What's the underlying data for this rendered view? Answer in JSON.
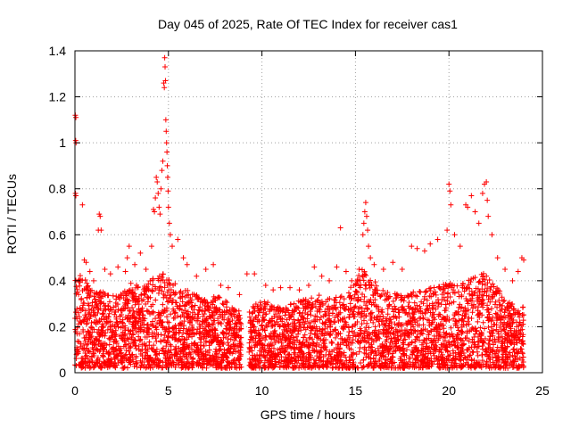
{
  "chart_data": {
    "type": "scatter",
    "title": "Day 045 of 2025, Rate Of TEC Index for receiver cas1",
    "xlabel": "GPS time / hours",
    "ylabel": "ROTI / TECUs",
    "xlim": [
      0,
      25
    ],
    "ylim": [
      0,
      1.4
    ],
    "xticks": [
      0,
      5,
      10,
      15,
      20,
      25
    ],
    "xtick_labels": [
      "0",
      "5",
      "10",
      "15",
      "20",
      "25"
    ],
    "yticks": [
      0,
      0.2,
      0.4,
      0.6,
      0.8,
      1.0,
      1.2,
      1.4
    ],
    "ytick_labels": [
      "0",
      "0.2",
      "0.4",
      "0.6",
      "0.8",
      "1",
      "1.2",
      "1.4"
    ],
    "grid": true,
    "marker": "+",
    "color": "#ff0000",
    "points": [
      [
        0.02,
        1.12
      ],
      [
        0.05,
        1.11
      ],
      [
        0.04,
        1.01
      ],
      [
        0.06,
        1.0
      ],
      [
        0.03,
        0.78
      ],
      [
        0.05,
        0.77
      ],
      [
        0.4,
        0.73
      ],
      [
        1.3,
        0.69
      ],
      [
        1.35,
        0.68
      ],
      [
        1.25,
        0.62
      ],
      [
        1.4,
        0.62
      ],
      [
        0.5,
        0.49
      ],
      [
        0.6,
        0.48
      ],
      [
        0.8,
        0.44
      ],
      [
        1.0,
        0.4
      ],
      [
        1.6,
        0.45
      ],
      [
        1.9,
        0.43
      ],
      [
        2.3,
        0.46
      ],
      [
        2.7,
        0.44
      ],
      [
        2.8,
        0.5
      ],
      [
        2.9,
        0.55
      ],
      [
        3.2,
        0.47
      ],
      [
        3.5,
        0.52
      ],
      [
        3.8,
        0.45
      ],
      [
        4.1,
        0.55
      ],
      [
        4.2,
        0.71
      ],
      [
        4.25,
        0.7
      ],
      [
        4.3,
        0.76
      ],
      [
        4.35,
        0.85
      ],
      [
        4.4,
        0.83
      ],
      [
        4.45,
        0.78
      ],
      [
        4.5,
        0.72
      ],
      [
        4.55,
        0.69
      ],
      [
        4.6,
        0.8
      ],
      [
        4.65,
        0.88
      ],
      [
        4.7,
        0.92
      ],
      [
        4.75,
        1.26
      ],
      [
        4.78,
        1.24
      ],
      [
        4.8,
        1.37
      ],
      [
        4.82,
        1.33
      ],
      [
        4.84,
        1.27
      ],
      [
        4.86,
        1.1
      ],
      [
        4.88,
        1.05
      ],
      [
        4.9,
        1.0
      ],
      [
        4.92,
        0.96
      ],
      [
        4.94,
        0.9
      ],
      [
        4.96,
        0.85
      ],
      [
        4.98,
        0.79
      ],
      [
        5.0,
        0.72
      ],
      [
        5.05,
        0.65
      ],
      [
        5.1,
        0.6
      ],
      [
        5.2,
        0.55
      ],
      [
        5.5,
        0.58
      ],
      [
        5.8,
        0.5
      ],
      [
        6.0,
        0.47
      ],
      [
        6.5,
        0.42
      ],
      [
        7.0,
        0.45
      ],
      [
        7.4,
        0.47
      ],
      [
        7.8,
        0.38
      ],
      [
        8.2,
        0.37
      ],
      [
        8.8,
        0.34
      ],
      [
        9.2,
        0.43
      ],
      [
        9.6,
        0.43
      ],
      [
        10.2,
        0.38
      ],
      [
        10.6,
        0.36
      ],
      [
        11.0,
        0.37
      ],
      [
        11.5,
        0.37
      ],
      [
        12.0,
        0.36
      ],
      [
        12.5,
        0.38
      ],
      [
        12.8,
        0.46
      ],
      [
        13.2,
        0.42
      ],
      [
        13.6,
        0.4
      ],
      [
        14.0,
        0.46
      ],
      [
        14.2,
        0.63
      ],
      [
        14.5,
        0.44
      ],
      [
        14.8,
        0.4
      ],
      [
        15.2,
        0.45
      ],
      [
        15.4,
        0.6
      ],
      [
        15.45,
        0.65
      ],
      [
        15.5,
        0.7
      ],
      [
        15.55,
        0.74
      ],
      [
        15.6,
        0.68
      ],
      [
        15.65,
        0.62
      ],
      [
        15.7,
        0.55
      ],
      [
        15.8,
        0.5
      ],
      [
        16.0,
        0.47
      ],
      [
        16.5,
        0.45
      ],
      [
        17.0,
        0.48
      ],
      [
        17.5,
        0.45
      ],
      [
        18.0,
        0.55
      ],
      [
        18.3,
        0.54
      ],
      [
        18.7,
        0.53
      ],
      [
        19.0,
        0.56
      ],
      [
        19.4,
        0.58
      ],
      [
        19.9,
        0.62
      ],
      [
        20.0,
        0.82
      ],
      [
        20.05,
        0.79
      ],
      [
        20.1,
        0.73
      ],
      [
        20.3,
        0.6
      ],
      [
        20.6,
        0.55
      ],
      [
        20.9,
        0.73
      ],
      [
        21.0,
        0.72
      ],
      [
        21.2,
        0.77
      ],
      [
        21.4,
        0.7
      ],
      [
        21.6,
        0.65
      ],
      [
        21.8,
        0.78
      ],
      [
        21.9,
        0.82
      ],
      [
        22.0,
        0.83
      ],
      [
        22.05,
        0.75
      ],
      [
        22.1,
        0.68
      ],
      [
        22.3,
        0.6
      ],
      [
        22.6,
        0.5
      ],
      [
        23.0,
        0.45
      ],
      [
        23.4,
        0.4
      ],
      [
        23.7,
        0.44
      ],
      [
        23.9,
        0.5
      ],
      [
        24.0,
        0.49
      ]
    ],
    "density_band": [
      [
        0,
        0.42
      ],
      [
        0.5,
        0.4
      ],
      [
        1.0,
        0.33
      ],
      [
        1.5,
        0.34
      ],
      [
        2.0,
        0.32
      ],
      [
        2.5,
        0.33
      ],
      [
        3.0,
        0.38
      ],
      [
        3.5,
        0.35
      ],
      [
        4.0,
        0.38
      ],
      [
        4.5,
        0.42
      ],
      [
        5.0,
        0.4
      ],
      [
        5.5,
        0.36
      ],
      [
        6.0,
        0.34
      ],
      [
        6.5,
        0.32
      ],
      [
        7.0,
        0.3
      ],
      [
        7.5,
        0.32
      ],
      [
        8.0,
        0.3
      ],
      [
        8.5,
        0.26
      ],
      [
        9.0,
        0.24
      ],
      [
        9.5,
        0.28
      ],
      [
        10.0,
        0.3
      ],
      [
        10.5,
        0.28
      ],
      [
        11.0,
        0.27
      ],
      [
        11.5,
        0.28
      ],
      [
        12.0,
        0.3
      ],
      [
        12.5,
        0.3
      ],
      [
        13.0,
        0.32
      ],
      [
        13.5,
        0.3
      ],
      [
        14.0,
        0.32
      ],
      [
        14.5,
        0.33
      ],
      [
        15.0,
        0.38
      ],
      [
        15.5,
        0.45
      ],
      [
        16.0,
        0.38
      ],
      [
        16.5,
        0.34
      ],
      [
        17.0,
        0.33
      ],
      [
        17.5,
        0.32
      ],
      [
        18.0,
        0.34
      ],
      [
        18.5,
        0.34
      ],
      [
        19.0,
        0.35
      ],
      [
        19.5,
        0.36
      ],
      [
        20.0,
        0.38
      ],
      [
        20.5,
        0.36
      ],
      [
        21.0,
        0.38
      ],
      [
        21.5,
        0.4
      ],
      [
        22.0,
        0.42
      ],
      [
        22.5,
        0.38
      ],
      [
        23.0,
        0.3
      ],
      [
        23.5,
        0.28
      ],
      [
        24.0,
        0.27
      ]
    ]
  }
}
